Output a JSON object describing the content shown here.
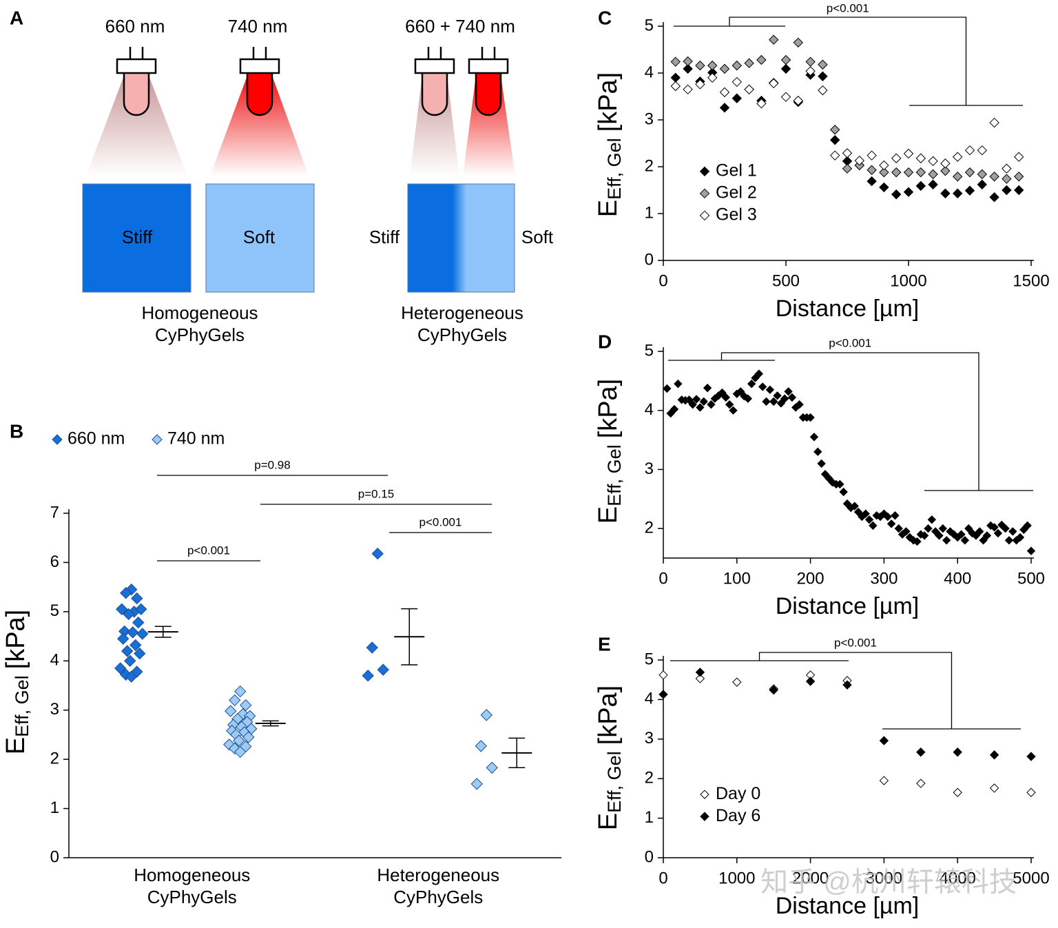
{
  "diagram": {
    "label": "A",
    "lamps": [
      "660 nm",
      "740 nm",
      "660 + 740 nm"
    ],
    "gels": [
      "Stiff",
      "Soft"
    ],
    "gradient": [
      "Stiff",
      "Soft"
    ],
    "captions": [
      [
        "Homogeneous",
        "CyPhyGels"
      ],
      [
        "Heterogeneous",
        "CyPhyGels"
      ]
    ]
  },
  "chart_data": [
    {
      "type": "strip",
      "label": "B",
      "categories": [
        [
          "Homogeneous",
          "CyPhyGels"
        ],
        [
          "Heterogeneous",
          "CyPhyGels"
        ]
      ],
      "series": [
        {
          "name": "660 nm",
          "color": "#1a6fd6",
          "values": [
            [
              5.45,
              5.38,
              5.27,
              5.05,
              5.0,
              5.05,
              4.95,
              4.78,
              4.6,
              4.58,
              4.55,
              4.45,
              4.32,
              4.2,
              4.15,
              4.0,
              3.85,
              3.78,
              3.72,
              3.68
            ],
            [
              6.18,
              4.27,
              3.82,
              3.7
            ]
          ],
          "mean": [
            4.59,
            4.49
          ],
          "error": [
            0.11,
            0.57
          ]
        },
        {
          "name": "740 nm",
          "color": "#9dcbf7",
          "values": [
            [
              3.38,
              3.2,
              3.1,
              2.98,
              2.92,
              2.88,
              2.82,
              2.76,
              2.7,
              2.66,
              2.62,
              2.58,
              2.55,
              2.5,
              2.45,
              2.38,
              2.3,
              2.26,
              2.22,
              2.15
            ],
            [
              2.9,
              2.27,
              1.83,
              1.5
            ]
          ],
          "mean": [
            2.73,
            2.13
          ],
          "error": [
            0.05,
            0.3
          ]
        }
      ],
      "ylim": [
        0,
        7
      ],
      "yticks": [
        0,
        1,
        2,
        3,
        4,
        5,
        6,
        7
      ],
      "ylabel": [
        "E",
        "Eff, Gel",
        "[kPa]"
      ],
      "legend": "top",
      "annotations": [
        "p=0.98",
        "p=0.15",
        "p<0.001",
        "p<0.001"
      ]
    },
    {
      "type": "scatter",
      "label": "C",
      "x": [
        50,
        100,
        150,
        200,
        250,
        300,
        350,
        400,
        450,
        500,
        550,
        600,
        650,
        700,
        750,
        800,
        850,
        900,
        950,
        1000,
        1050,
        1100,
        1150,
        1200,
        1250,
        1300,
        1350,
        1400,
        1450
      ],
      "series": [
        {
          "name": "Gel 1",
          "color": "#000000",
          "values": [
            3.9,
            4.09,
            3.82,
            4.01,
            3.26,
            3.46,
            3.65,
            3.41,
            3.79,
            4.09,
            3.38,
            3.96,
            3.93,
            2.57,
            2.12,
            2.03,
            1.69,
            1.56,
            1.41,
            1.46,
            1.59,
            1.62,
            1.43,
            1.43,
            1.49,
            1.62,
            1.35,
            1.5,
            1.5
          ]
        },
        {
          "name": "Gel 2",
          "color": "#a0a0a0",
          "values": [
            4.24,
            4.25,
            4.16,
            4.16,
            4.09,
            4.16,
            4.21,
            4.28,
            4.71,
            4.28,
            4.65,
            4.24,
            4.18,
            2.79,
            1.96,
            2.03,
            1.93,
            1.88,
            1.88,
            1.88,
            1.88,
            1.84,
            1.91,
            1.79,
            1.88,
            1.84,
            1.79,
            1.74,
            1.79
          ]
        },
        {
          "name": "Gel 3",
          "color": "#ffffff",
          "values": [
            3.72,
            3.65,
            3.76,
            3.9,
            3.59,
            3.81,
            3.65,
            3.35,
            3.78,
            3.49,
            3.41,
            4.04,
            3.63,
            2.24,
            2.29,
            2.13,
            2.24,
            2.03,
            2.18,
            2.28,
            2.18,
            2.12,
            2.07,
            2.21,
            2.35,
            2.35,
            2.94,
            1.96,
            2.21
          ]
        }
      ],
      "xlim": [
        0,
        1500
      ],
      "xticks": [
        0,
        500,
        1000,
        1500
      ],
      "ylim": [
        0,
        5
      ],
      "yticks": [
        0,
        1,
        2,
        3,
        4,
        5
      ],
      "xlabel": "Distance [µm]",
      "ylabel": [
        "E",
        "Eff, Gel",
        "[kPa]"
      ],
      "legend": "center-left",
      "annotations": [
        "p<0.001"
      ]
    },
    {
      "type": "scatter",
      "label": "D",
      "x": [
        5,
        10,
        15,
        20,
        25,
        30,
        35,
        40,
        45,
        50,
        55,
        60,
        65,
        70,
        75,
        80,
        85,
        90,
        95,
        100,
        105,
        110,
        115,
        120,
        125,
        130,
        135,
        140,
        145,
        150,
        155,
        160,
        165,
        170,
        175,
        180,
        185,
        190,
        195,
        200,
        205,
        210,
        215,
        220,
        225,
        230,
        235,
        240,
        245,
        250,
        255,
        260,
        265,
        270,
        275,
        280,
        285,
        290,
        295,
        300,
        305,
        310,
        315,
        320,
        325,
        330,
        335,
        340,
        345,
        350,
        355,
        360,
        365,
        370,
        375,
        380,
        385,
        390,
        395,
        400,
        405,
        410,
        415,
        420,
        425,
        430,
        435,
        440,
        445,
        450,
        455,
        460,
        465,
        470,
        475,
        480,
        485,
        490,
        495,
        500
      ],
      "color": "#000000",
      "values": [
        4.37,
        3.95,
        4.02,
        4.45,
        4.18,
        4.17,
        4.18,
        4.1,
        4.19,
        4.05,
        4.15,
        4.38,
        4.1,
        4.2,
        4.25,
        4.3,
        4.22,
        4.1,
        4.0,
        4.28,
        4.32,
        4.24,
        4.2,
        4.45,
        4.55,
        4.62,
        4.4,
        4.15,
        4.35,
        4.15,
        4.25,
        4.12,
        4.2,
        4.32,
        4.22,
        4.05,
        4.1,
        3.88,
        3.88,
        3.88,
        3.55,
        3.3,
        3.1,
        2.92,
        2.85,
        2.78,
        2.75,
        2.75,
        2.62,
        2.42,
        2.35,
        2.38,
        2.28,
        2.2,
        2.25,
        2.15,
        2.05,
        2.22,
        2.2,
        2.25,
        2.2,
        2.08,
        2.22,
        2.0,
        1.9,
        1.95,
        1.85,
        1.8,
        1.78,
        1.9,
        1.88,
        2.0,
        2.15,
        1.95,
        1.88,
        2.0,
        1.8,
        1.95,
        1.9,
        1.85,
        1.9,
        1.8,
        2.0,
        1.92,
        1.88,
        1.95,
        1.8,
        1.88,
        2.05,
        2.02,
        1.92,
        2.06,
        2.0,
        1.8,
        1.95,
        1.8,
        1.85,
        1.98,
        2.05,
        1.62
      ],
      "xlim": [
        0,
        500
      ],
      "xticks": [
        0,
        100,
        200,
        300,
        400,
        500
      ],
      "ylim": [
        1.5,
        5
      ],
      "yticks": [
        2,
        3,
        4,
        5
      ],
      "xlabel": "Distance [µm]",
      "ylabel": [
        "E",
        "Eff, Gel",
        "[kPa]"
      ],
      "annotations": [
        "p<0.001"
      ]
    },
    {
      "type": "scatter",
      "label": "E",
      "x": [
        0,
        500,
        1000,
        1500,
        2000,
        2500,
        3000,
        3500,
        4000,
        4500,
        5000
      ],
      "series": [
        {
          "name": "Day 0",
          "color": "#ffffff",
          "values": [
            4.62,
            4.53,
            4.44,
            4.27,
            4.62,
            4.48,
            1.95,
            1.88,
            1.65,
            1.76,
            1.65
          ]
        },
        {
          "name": "Day 6",
          "color": "#000000",
          "values": [
            4.13,
            4.69,
            null,
            4.24,
            4.46,
            4.37,
            2.96,
            2.67,
            2.67,
            2.6,
            2.56
          ]
        }
      ],
      "xlim": [
        0,
        5000
      ],
      "xticks": [
        0,
        1000,
        2000,
        3000,
        4000,
        5000
      ],
      "ylim": [
        0,
        5
      ],
      "yticks": [
        0,
        1,
        2,
        3,
        4,
        5
      ],
      "xlabel": "Distance [µm]",
      "ylabel": [
        "E",
        "Eff, Gel",
        "[kPa]"
      ],
      "legend": "bottom-left",
      "annotations": [
        "p<0.001"
      ]
    }
  ],
  "watermark": "知乎 @杭州轩辕科技"
}
